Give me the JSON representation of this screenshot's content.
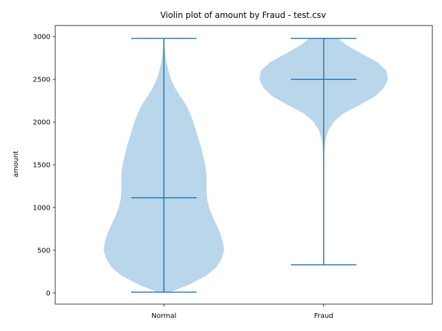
{
  "chart_data": {
    "type": "violin",
    "title": "Violin plot of amount by Fraud - test.csv",
    "xlabel": "",
    "ylabel": "amount",
    "categories": [
      "Normal",
      "Fraud"
    ],
    "ylim": [
      -130,
      3130
    ],
    "yticks": [
      0,
      500,
      1000,
      1500,
      2000,
      2500,
      3000
    ],
    "grid": false,
    "colors": {
      "body": "#bad6ea",
      "lines": "#1f77b4"
    },
    "violins": [
      {
        "category": "Normal",
        "min": 10,
        "median": 1115,
        "max": 2980,
        "profile": [
          [
            10,
            0.1
          ],
          [
            100,
            0.39
          ],
          [
            200,
            0.64
          ],
          [
            300,
            0.8
          ],
          [
            400,
            0.88
          ],
          [
            500,
            0.92
          ],
          [
            600,
            0.9
          ],
          [
            700,
            0.86
          ],
          [
            800,
            0.8
          ],
          [
            900,
            0.74
          ],
          [
            1000,
            0.69
          ],
          [
            1100,
            0.66
          ],
          [
            1200,
            0.65
          ],
          [
            1300,
            0.65
          ],
          [
            1400,
            0.65
          ],
          [
            1500,
            0.63
          ],
          [
            1600,
            0.6
          ],
          [
            1700,
            0.57
          ],
          [
            1800,
            0.53
          ],
          [
            1900,
            0.49
          ],
          [
            2000,
            0.45
          ],
          [
            2100,
            0.4
          ],
          [
            2200,
            0.34
          ],
          [
            2300,
            0.25
          ],
          [
            2400,
            0.17
          ],
          [
            2500,
            0.11
          ],
          [
            2600,
            0.07
          ],
          [
            2700,
            0.04
          ],
          [
            2800,
            0.02
          ],
          [
            2900,
            0.01
          ],
          [
            2980,
            0.01
          ]
        ]
      },
      {
        "category": "Fraud",
        "min": 330,
        "median": 2500,
        "max": 2980,
        "profile": [
          [
            330,
            0.005
          ],
          [
            500,
            0.005
          ],
          [
            1000,
            0.005
          ],
          [
            1500,
            0.006
          ],
          [
            1700,
            0.012
          ],
          [
            1800,
            0.03
          ],
          [
            1900,
            0.07
          ],
          [
            2000,
            0.15
          ],
          [
            2100,
            0.3
          ],
          [
            2200,
            0.55
          ],
          [
            2300,
            0.78
          ],
          [
            2400,
            0.92
          ],
          [
            2500,
            0.98
          ],
          [
            2600,
            0.96
          ],
          [
            2700,
            0.82
          ],
          [
            2800,
            0.58
          ],
          [
            2900,
            0.35
          ],
          [
            2980,
            0.22
          ]
        ]
      }
    ]
  }
}
